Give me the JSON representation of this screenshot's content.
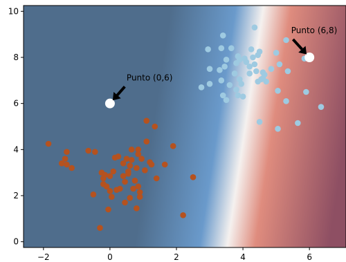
{
  "chart_data": {
    "type": "scatter",
    "title": "",
    "xlabel": "",
    "ylabel": "",
    "xlim": [
      -2.6,
      7.1
    ],
    "ylim": [
      -0.25,
      10.25
    ],
    "x_ticks": [
      -2,
      0,
      2,
      4,
      6
    ],
    "y_ticks": [
      0,
      2,
      4,
      6,
      8,
      10
    ],
    "x_tick_labels": [
      "−2",
      "0",
      "2",
      "4",
      "6"
    ],
    "y_tick_labels": [
      "0",
      "2",
      "4",
      "6",
      "8",
      "10"
    ],
    "grid": false,
    "background": {
      "kind": "decision-function",
      "boundary_at_y0_x": 3.55,
      "boundary_at_y10_x": 4.6,
      "colors": {
        "far_negative": "#4f6d8c",
        "mid_negative": "#6a9acb",
        "boundary": "#f5f1ef",
        "mid_positive": "#df8c7e",
        "far_positive": "#8e4f63"
      }
    },
    "series": [
      {
        "color": "#b5521f",
        "points": [
          [
            -1.85,
            4.25
          ],
          [
            -1.3,
            3.9
          ],
          [
            -1.35,
            3.6
          ],
          [
            -1.45,
            3.4
          ],
          [
            -1.3,
            3.35
          ],
          [
            -1.15,
            3.2
          ],
          [
            -0.65,
            3.95
          ],
          [
            -0.45,
            3.9
          ],
          [
            -0.5,
            2.05
          ],
          [
            -0.3,
            0.6
          ],
          [
            -0.25,
            3.0
          ],
          [
            -0.2,
            2.75
          ],
          [
            -0.15,
            2.9
          ],
          [
            -0.2,
            2.5
          ],
          [
            -0.1,
            2.4
          ],
          [
            0.0,
            2.2
          ],
          [
            0.05,
            1.95
          ],
          [
            -0.05,
            1.4
          ],
          [
            0.0,
            2.85
          ],
          [
            0.1,
            3.05
          ],
          [
            0.15,
            3.65
          ],
          [
            0.25,
            3.7
          ],
          [
            0.3,
            2.3
          ],
          [
            0.2,
            2.25
          ],
          [
            0.4,
            2.85
          ],
          [
            0.45,
            2.6
          ],
          [
            0.4,
            3.4
          ],
          [
            0.45,
            1.7
          ],
          [
            0.55,
            2.95
          ],
          [
            0.6,
            1.9
          ],
          [
            0.5,
            3.6
          ],
          [
            0.55,
            3.05
          ],
          [
            0.6,
            3.3
          ],
          [
            0.65,
            3.55
          ],
          [
            0.65,
            4.0
          ],
          [
            0.7,
            2.3
          ],
          [
            0.75,
            2.65
          ],
          [
            0.8,
            1.45
          ],
          [
            0.8,
            3.2
          ],
          [
            0.85,
            4.0
          ],
          [
            0.9,
            1.95
          ],
          [
            0.85,
            2.4
          ],
          [
            0.9,
            2.15
          ],
          [
            0.95,
            3.6
          ],
          [
            0.85,
            3.8
          ],
          [
            1.05,
            3.1
          ],
          [
            1.1,
            5.25
          ],
          [
            1.1,
            4.35
          ],
          [
            1.2,
            3.45
          ],
          [
            1.25,
            3.35
          ],
          [
            1.35,
            5.0
          ],
          [
            1.4,
            2.75
          ],
          [
            1.65,
            3.35
          ],
          [
            1.9,
            4.15
          ],
          [
            2.2,
            1.15
          ],
          [
            2.5,
            2.8
          ]
        ]
      },
      {
        "color": "#9ecae1",
        "points": [
          [
            2.75,
            6.7
          ],
          [
            2.95,
            8.35
          ],
          [
            3.0,
            7.5
          ],
          [
            3.0,
            6.85
          ],
          [
            3.3,
            7.45
          ],
          [
            3.35,
            8.4
          ],
          [
            3.35,
            7.0
          ],
          [
            3.4,
            8.95
          ],
          [
            3.45,
            7.6
          ],
          [
            3.4,
            6.35
          ],
          [
            3.5,
            7.9
          ],
          [
            3.5,
            6.15
          ],
          [
            3.6,
            6.8
          ],
          [
            3.65,
            8.4
          ],
          [
            3.75,
            7.3
          ],
          [
            3.8,
            6.6
          ],
          [
            3.8,
            7.75
          ],
          [
            3.85,
            8.05
          ],
          [
            3.85,
            6.35
          ],
          [
            3.9,
            7.9
          ],
          [
            3.95,
            6.85
          ],
          [
            3.9,
            7.05
          ],
          [
            4.0,
            6.3
          ],
          [
            4.05,
            7.95
          ],
          [
            4.1,
            7.8
          ],
          [
            4.2,
            7.6
          ],
          [
            4.25,
            8.35
          ],
          [
            4.2,
            7.3
          ],
          [
            4.3,
            8.0
          ],
          [
            4.35,
            9.3
          ],
          [
            4.35,
            7.7
          ],
          [
            4.4,
            7.4
          ],
          [
            4.45,
            8.1
          ],
          [
            4.45,
            6.95
          ],
          [
            4.5,
            5.2
          ],
          [
            4.5,
            8.25
          ],
          [
            4.55,
            7.05
          ],
          [
            4.6,
            7.35
          ],
          [
            4.6,
            7.1
          ],
          [
            4.65,
            7.25
          ],
          [
            4.7,
            6.95
          ],
          [
            4.85,
            7.5
          ],
          [
            5.0,
            8.2
          ],
          [
            5.05,
            4.9
          ],
          [
            5.05,
            6.55
          ],
          [
            5.1,
            7.7
          ],
          [
            5.3,
            8.75
          ],
          [
            5.3,
            6.1
          ],
          [
            5.35,
            7.4
          ],
          [
            5.65,
            5.15
          ],
          [
            5.85,
            7.95
          ],
          [
            5.9,
            6.5
          ],
          [
            6.35,
            5.85
          ]
        ]
      }
    ],
    "highlighted_points": [
      {
        "x": 0,
        "y": 6,
        "label": "Punto (0,6)",
        "color": "#ffffff",
        "text_x": 0.5,
        "text_y": 7.0
      },
      {
        "x": 6,
        "y": 8,
        "label": "Punto (6,8)",
        "color": "#ffffff",
        "text_x": 5.45,
        "text_y": 9.05
      }
    ]
  }
}
